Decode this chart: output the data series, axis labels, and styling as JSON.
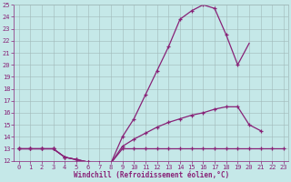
{
  "xlabel": "Windchill (Refroidissement éolien,°C)",
  "x_values": [
    0,
    1,
    2,
    3,
    4,
    5,
    6,
    7,
    8,
    9,
    10,
    11,
    12,
    13,
    14,
    15,
    16,
    17,
    18,
    19,
    20,
    21,
    22,
    23
  ],
  "line1_y": [
    13,
    13,
    13,
    13,
    12.3,
    12.1,
    11.9,
    11.85,
    11.8,
    13,
    13,
    13,
    13,
    13,
    13,
    13,
    13,
    13,
    13,
    13,
    13,
    13,
    13,
    13
  ],
  "line2_y": [
    13,
    13,
    13,
    13,
    12.3,
    12.1,
    11.9,
    11.85,
    11.8,
    13.2,
    13.8,
    14.3,
    14.8,
    15.2,
    15.5,
    15.8,
    16.0,
    16.3,
    16.5,
    16.5,
    15.0,
    14.5,
    null,
    null
  ],
  "line3_y": [
    13,
    13,
    13,
    13,
    12.3,
    12.1,
    11.9,
    11.85,
    11.8,
    14.0,
    15.5,
    17.5,
    19.5,
    21.5,
    23.8,
    24.5,
    25.0,
    24.7,
    22.5,
    20.0,
    null,
    null,
    null,
    null
  ],
  "line4_y": [
    null,
    null,
    null,
    null,
    null,
    null,
    null,
    null,
    null,
    null,
    null,
    null,
    null,
    null,
    null,
    null,
    25.0,
    null,
    null,
    20.0,
    21.8,
    null,
    null,
    null
  ],
  "line_color": "#882277",
  "bg_color": "#c5e8e8",
  "grid_color": "#a0b8b8",
  "ylim": [
    12,
    25
  ],
  "xlim": [
    -0.4,
    23.4
  ],
  "yticks": [
    12,
    13,
    14,
    15,
    16,
    17,
    18,
    19,
    20,
    21,
    22,
    23,
    24,
    25
  ],
  "xticks": [
    0,
    1,
    2,
    3,
    4,
    5,
    6,
    7,
    8,
    9,
    10,
    11,
    12,
    13,
    14,
    15,
    16,
    17,
    18,
    19,
    20,
    21,
    22,
    23
  ]
}
